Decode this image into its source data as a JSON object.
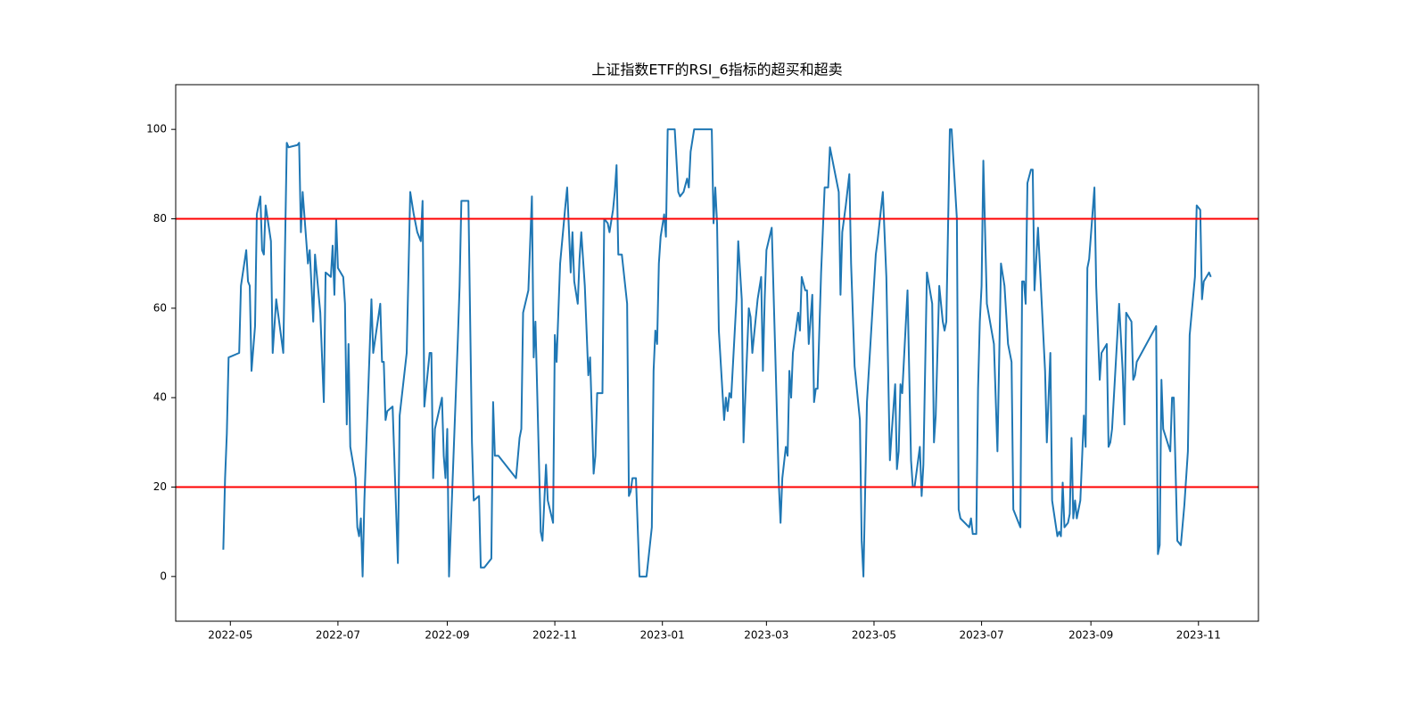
{
  "chart_data": {
    "type": "line",
    "title": "上证指数ETF的RSI_6指标的超买和超卖",
    "x": [
      "2022-04-27",
      "2022-04-28",
      "2022-04-29",
      "2022-04-30",
      "2022-05-06",
      "2022-05-07",
      "2022-05-10",
      "2022-05-11",
      "2022-05-12",
      "2022-05-13",
      "2022-05-15",
      "2022-05-16",
      "2022-05-18",
      "2022-05-19",
      "2022-05-20",
      "2022-05-21",
      "2022-05-24",
      "2022-05-25",
      "2022-05-27",
      "2022-05-28",
      "2022-05-31",
      "2022-06-02",
      "2022-06-03",
      "2022-06-08",
      "2022-06-09",
      "2022-06-10",
      "2022-06-11",
      "2022-06-14",
      "2022-06-15",
      "2022-06-17",
      "2022-06-18",
      "2022-06-21",
      "2022-06-23",
      "2022-06-24",
      "2022-06-27",
      "2022-06-28",
      "2022-06-29",
      "2022-06-30",
      "2022-07-01",
      "2022-07-04",
      "2022-07-05",
      "2022-07-06",
      "2022-07-07",
      "2022-07-08",
      "2022-07-11",
      "2022-07-12",
      "2022-07-13",
      "2022-07-14",
      "2022-07-15",
      "2022-07-16",
      "2022-07-20",
      "2022-07-21",
      "2022-07-25",
      "2022-07-26",
      "2022-07-27",
      "2022-07-28",
      "2022-07-29",
      "2022-08-01",
      "2022-08-04",
      "2022-08-05",
      "2022-08-09",
      "2022-08-11",
      "2022-08-13",
      "2022-08-15",
      "2022-08-17",
      "2022-08-18",
      "2022-08-19",
      "2022-08-22",
      "2022-08-23",
      "2022-08-24",
      "2022-08-25",
      "2022-08-29",
      "2022-08-30",
      "2022-08-31",
      "2022-09-01",
      "2022-09-02",
      "2022-09-07",
      "2022-09-08",
      "2022-09-09",
      "2022-09-13",
      "2022-09-15",
      "2022-09-16",
      "2022-09-19",
      "2022-09-20",
      "2022-09-22",
      "2022-09-26",
      "2022-09-27",
      "2022-09-28",
      "2022-09-30",
      "2022-10-10",
      "2022-10-12",
      "2022-10-13",
      "2022-10-14",
      "2022-10-17",
      "2022-10-19",
      "2022-10-20",
      "2022-10-21",
      "2022-10-24",
      "2022-10-25",
      "2022-10-27",
      "2022-10-28",
      "2022-10-31",
      "2022-11-01",
      "2022-11-02",
      "2022-11-04",
      "2022-11-07",
      "2022-11-08",
      "2022-11-10",
      "2022-11-11",
      "2022-11-12",
      "2022-11-14",
      "2022-11-15",
      "2022-11-16",
      "2022-11-18",
      "2022-11-19",
      "2022-11-20",
      "2022-11-21",
      "2022-11-23",
      "2022-11-24",
      "2022-11-25",
      "2022-11-28",
      "2022-11-29",
      "2022-12-01",
      "2022-12-02",
      "2022-12-04",
      "2022-12-05",
      "2022-12-06",
      "2022-12-07",
      "2022-12-09",
      "2022-12-12",
      "2022-12-13",
      "2022-12-14",
      "2022-12-15",
      "2022-12-17",
      "2022-12-19",
      "2022-12-23",
      "2022-12-26",
      "2022-12-27",
      "2022-12-28",
      "2022-12-29",
      "2022-12-30",
      "2022-12-31",
      "2023-01-02",
      "2023-01-03",
      "2023-01-04",
      "2023-01-08",
      "2023-01-10",
      "2023-01-11",
      "2023-01-13",
      "2023-01-15",
      "2023-01-16",
      "2023-01-17",
      "2023-01-19",
      "2023-01-29",
      "2023-01-30",
      "2023-01-31",
      "2023-02-01",
      "2023-02-02",
      "2023-02-05",
      "2023-02-06",
      "2023-02-07",
      "2023-02-08",
      "2023-02-09",
      "2023-02-12",
      "2023-02-13",
      "2023-02-15",
      "2023-02-16",
      "2023-02-19",
      "2023-02-20",
      "2023-02-21",
      "2023-02-22",
      "2023-02-24",
      "2023-02-26",
      "2023-02-27",
      "2023-02-28",
      "2023-03-01",
      "2023-03-04",
      "2023-03-06",
      "2023-03-08",
      "2023-03-09",
      "2023-03-10",
      "2023-03-12",
      "2023-03-13",
      "2023-03-14",
      "2023-03-15",
      "2023-03-16",
      "2023-03-19",
      "2023-03-20",
      "2023-03-21",
      "2023-03-23",
      "2023-03-24",
      "2023-03-25",
      "2023-03-27",
      "2023-03-28",
      "2023-03-29",
      "2023-03-30",
      "2023-04-01",
      "2023-04-03",
      "2023-04-05",
      "2023-04-06",
      "2023-04-11",
      "2023-04-12",
      "2023-04-13",
      "2023-04-15",
      "2023-04-17",
      "2023-04-18",
      "2023-04-20",
      "2023-04-23",
      "2023-04-24",
      "2023-04-25",
      "2023-04-27",
      "2023-05-02",
      "2023-05-03",
      "2023-05-06",
      "2023-05-08",
      "2023-05-10",
      "2023-05-11",
      "2023-05-13",
      "2023-05-14",
      "2023-05-15",
      "2023-05-16",
      "2023-05-17",
      "2023-05-20",
      "2023-05-22",
      "2023-05-23",
      "2023-05-24",
      "2023-05-27",
      "2023-05-28",
      "2023-05-29",
      "2023-05-31",
      "2023-06-03",
      "2023-06-04",
      "2023-06-05",
      "2023-06-07",
      "2023-06-09",
      "2023-06-10",
      "2023-06-11",
      "2023-06-13",
      "2023-06-14",
      "2023-06-17",
      "2023-06-18",
      "2023-06-19",
      "2023-06-24",
      "2023-06-25",
      "2023-06-26",
      "2023-06-28",
      "2023-06-29",
      "2023-06-30",
      "2023-07-01",
      "2023-07-02",
      "2023-07-04",
      "2023-07-08",
      "2023-07-10",
      "2023-07-12",
      "2023-07-14",
      "2023-07-16",
      "2023-07-18",
      "2023-07-19",
      "2023-07-23",
      "2023-07-24",
      "2023-07-25",
      "2023-07-26",
      "2023-07-27",
      "2023-07-29",
      "2023-07-30",
      "2023-07-31",
      "2023-08-02",
      "2023-08-06",
      "2023-08-07",
      "2023-08-09",
      "2023-08-10",
      "2023-08-13",
      "2023-08-14",
      "2023-08-15",
      "2023-08-16",
      "2023-08-17",
      "2023-08-19",
      "2023-08-20",
      "2023-08-21",
      "2023-08-22",
      "2023-08-23",
      "2023-08-24",
      "2023-08-26",
      "2023-08-28",
      "2023-08-29",
      "2023-08-30",
      "2023-08-31",
      "2023-09-03",
      "2023-09-04",
      "2023-09-06",
      "2023-09-07",
      "2023-09-10",
      "2023-09-11",
      "2023-09-12",
      "2023-09-13",
      "2023-09-15",
      "2023-09-17",
      "2023-09-19",
      "2023-09-20",
      "2023-09-21",
      "2023-09-24",
      "2023-09-25",
      "2023-09-26",
      "2023-09-27",
      "2023-10-08",
      "2023-10-09",
      "2023-10-10",
      "2023-10-11",
      "2023-10-12",
      "2023-10-16",
      "2023-10-17",
      "2023-10-18",
      "2023-10-20",
      "2023-10-22",
      "2023-10-24",
      "2023-10-26",
      "2023-10-27",
      "2023-10-30",
      "2023-10-31",
      "2023-11-02",
      "2023-11-03",
      "2023-11-04",
      "2023-11-07",
      "2023-11-08"
    ],
    "series": [
      {
        "color": "#1f77b4",
        "values": [
          6,
          22,
          32,
          49,
          50,
          65,
          73,
          66,
          65,
          46,
          56,
          81,
          85,
          73,
          72,
          83,
          75,
          50,
          62,
          59,
          50,
          97,
          96,
          96.5,
          97,
          77,
          86,
          70,
          73,
          57,
          72,
          59,
          39,
          68,
          67,
          74,
          63,
          80,
          69,
          67,
          61,
          34,
          52,
          29,
          22,
          11,
          9,
          13,
          0,
          17,
          62,
          50,
          61,
          48,
          48,
          35,
          37,
          38,
          3,
          36,
          50,
          86,
          81,
          77,
          75,
          84,
          38,
          50,
          50,
          22,
          33,
          40,
          27,
          22,
          33,
          0,
          53,
          65,
          84,
          84,
          30,
          17,
          18,
          2,
          2,
          4,
          39,
          27,
          27,
          22,
          31,
          33,
          59,
          64,
          85,
          49,
          57,
          10,
          8,
          25,
          17,
          12,
          54,
          48,
          70,
          83,
          87,
          68,
          77,
          66,
          61,
          71,
          77,
          65,
          55,
          45,
          49,
          23,
          27,
          41,
          41,
          80,
          79,
          77,
          82,
          86,
          92,
          72,
          72,
          61,
          18,
          19,
          22,
          22,
          0,
          0,
          11,
          46,
          55,
          52,
          70,
          76,
          81,
          76,
          100,
          100,
          86,
          85,
          86,
          89,
          87,
          95,
          100,
          100,
          79,
          87,
          79,
          55,
          35,
          40,
          37,
          41,
          40,
          62,
          75,
          62,
          30,
          60,
          58,
          50,
          54,
          62,
          67,
          46,
          62,
          73,
          78,
          50,
          21,
          12,
          22,
          29,
          27,
          46,
          40,
          50,
          59,
          55,
          67,
          64,
          64,
          52,
          63,
          39,
          42,
          42,
          68,
          87,
          87,
          96,
          86,
          63,
          77,
          83,
          90,
          70,
          47,
          35,
          8,
          0,
          39,
          72,
          75,
          86,
          67,
          26,
          32,
          43,
          24,
          28,
          43,
          41,
          64,
          26,
          20,
          20,
          29,
          18,
          25,
          68,
          61,
          30,
          36,
          65,
          57,
          55,
          57,
          100,
          100,
          80,
          15,
          13,
          11,
          13,
          9.5,
          9.5,
          42,
          57,
          65,
          93,
          61,
          52,
          28,
          70,
          65,
          52,
          48,
          15,
          11,
          66,
          66,
          61,
          88,
          91,
          91,
          64,
          78,
          46,
          30,
          50,
          17,
          9,
          10,
          9,
          21,
          11,
          12,
          14,
          31,
          13,
          17,
          13,
          17,
          36,
          29,
          69,
          71,
          87,
          65,
          44,
          50,
          52,
          29,
          30,
          33,
          47,
          61,
          46,
          34,
          59,
          57,
          44,
          45,
          48,
          56,
          5,
          7,
          44,
          33,
          28,
          40,
          40,
          8,
          7,
          16,
          28,
          54,
          67,
          83,
          82,
          62,
          66,
          68,
          67
        ]
      }
    ],
    "hlines": [
      {
        "value": 80,
        "color": "#ff0000"
      },
      {
        "value": 20,
        "color": "#ff0000"
      }
    ],
    "xlim": [
      "2022-03-31",
      "2023-12-05"
    ],
    "xticks": [
      {
        "value": "2022-05-01",
        "label": "2022-05"
      },
      {
        "value": "2022-07-01",
        "label": "2022-07"
      },
      {
        "value": "2022-09-01",
        "label": "2022-09"
      },
      {
        "value": "2022-11-01",
        "label": "2022-11"
      },
      {
        "value": "2023-01-01",
        "label": "2023-01"
      },
      {
        "value": "2023-03-01",
        "label": "2023-03"
      },
      {
        "value": "2023-05-01",
        "label": "2023-05"
      },
      {
        "value": "2023-07-01",
        "label": "2023-07"
      },
      {
        "value": "2023-09-01",
        "label": "2023-09"
      },
      {
        "value": "2023-11-01",
        "label": "2023-11"
      }
    ],
    "ylim": [
      -10,
      110
    ],
    "yticks": [
      0,
      20,
      40,
      60,
      80,
      100
    ],
    "grid": false
  }
}
